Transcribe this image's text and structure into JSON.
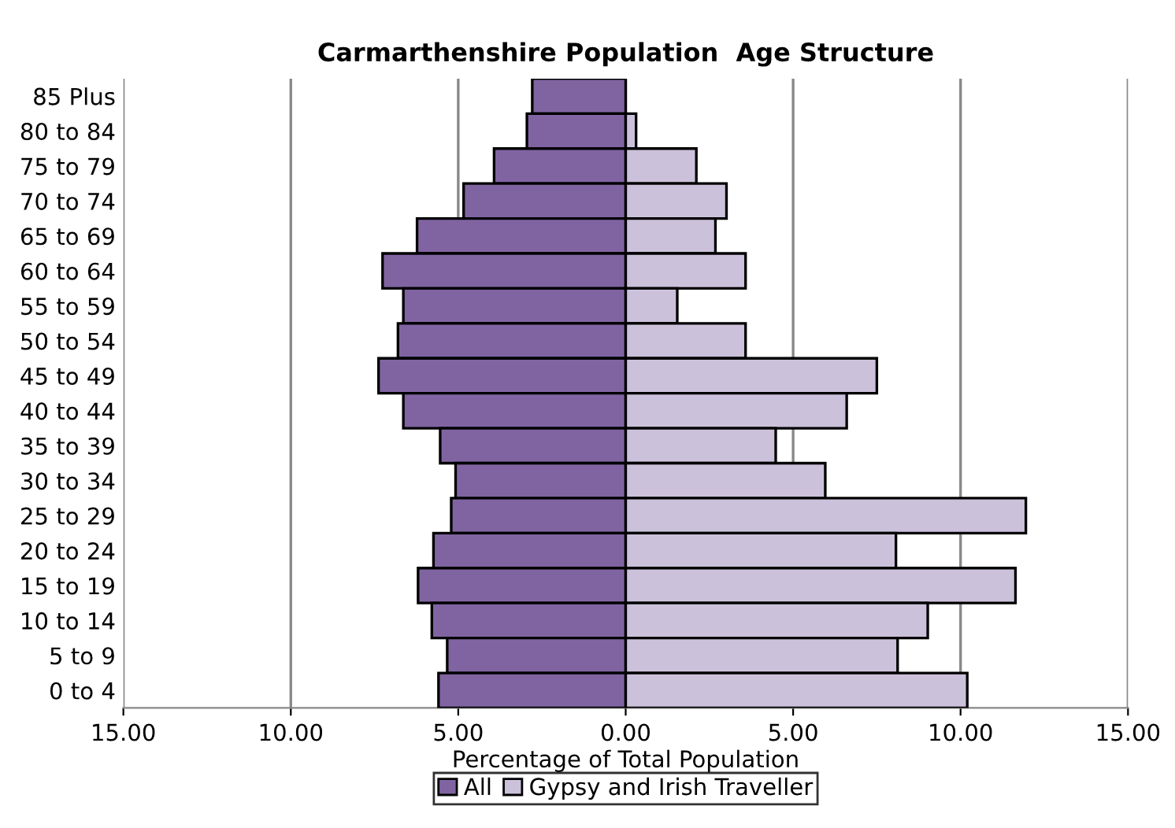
{
  "chart_data": {
    "type": "bar",
    "orientation": "horizontal",
    "title": "Carmarthenshire Population  Age Structure",
    "xlabel": "Percentage of Total Population",
    "categories": [
      "85 Plus",
      "80 to 84",
      "75 to 79",
      "70 to 74",
      "65 to 69",
      "60 to 64",
      "55 to 59",
      "50 to 54",
      "45 to 49",
      "40 to 44",
      "35 to 39",
      "30 to 34",
      "25 to 29",
      "20 to 24",
      "15 to 19",
      "10 to 14",
      "5 to 9",
      "0 to 4"
    ],
    "series": [
      {
        "name": "All",
        "color": "#8064a2",
        "values": [
          -2.79,
          -2.95,
          -3.93,
          -4.84,
          -6.23,
          -7.26,
          -6.64,
          -6.8,
          -7.38,
          -6.64,
          -5.54,
          -5.08,
          -5.21,
          -5.74,
          -6.2,
          -5.79,
          -5.33,
          -5.59
        ]
      },
      {
        "name": "Gypsy and Irish Traveller",
        "color": "#ccc1da",
        "values": [
          null,
          0.31,
          2.11,
          3.01,
          2.68,
          3.58,
          1.54,
          3.58,
          7.5,
          6.6,
          4.48,
          5.96,
          11.95,
          8.07,
          11.64,
          9.02,
          8.12,
          10.2
        ]
      }
    ],
    "xlim": [
      -15,
      15
    ],
    "xticks": [
      {
        "value": -15,
        "label": "15.00"
      },
      {
        "value": -10,
        "label": "10.00"
      },
      {
        "value": -5,
        "label": "5.00"
      },
      {
        "value": 0,
        "label": "0.00"
      },
      {
        "value": 5,
        "label": "5.00"
      },
      {
        "value": 10,
        "label": "10.00"
      },
      {
        "value": 15,
        "label": "15.00"
      }
    ],
    "grid": "x",
    "legend": "bottom",
    "stacked": true
  }
}
